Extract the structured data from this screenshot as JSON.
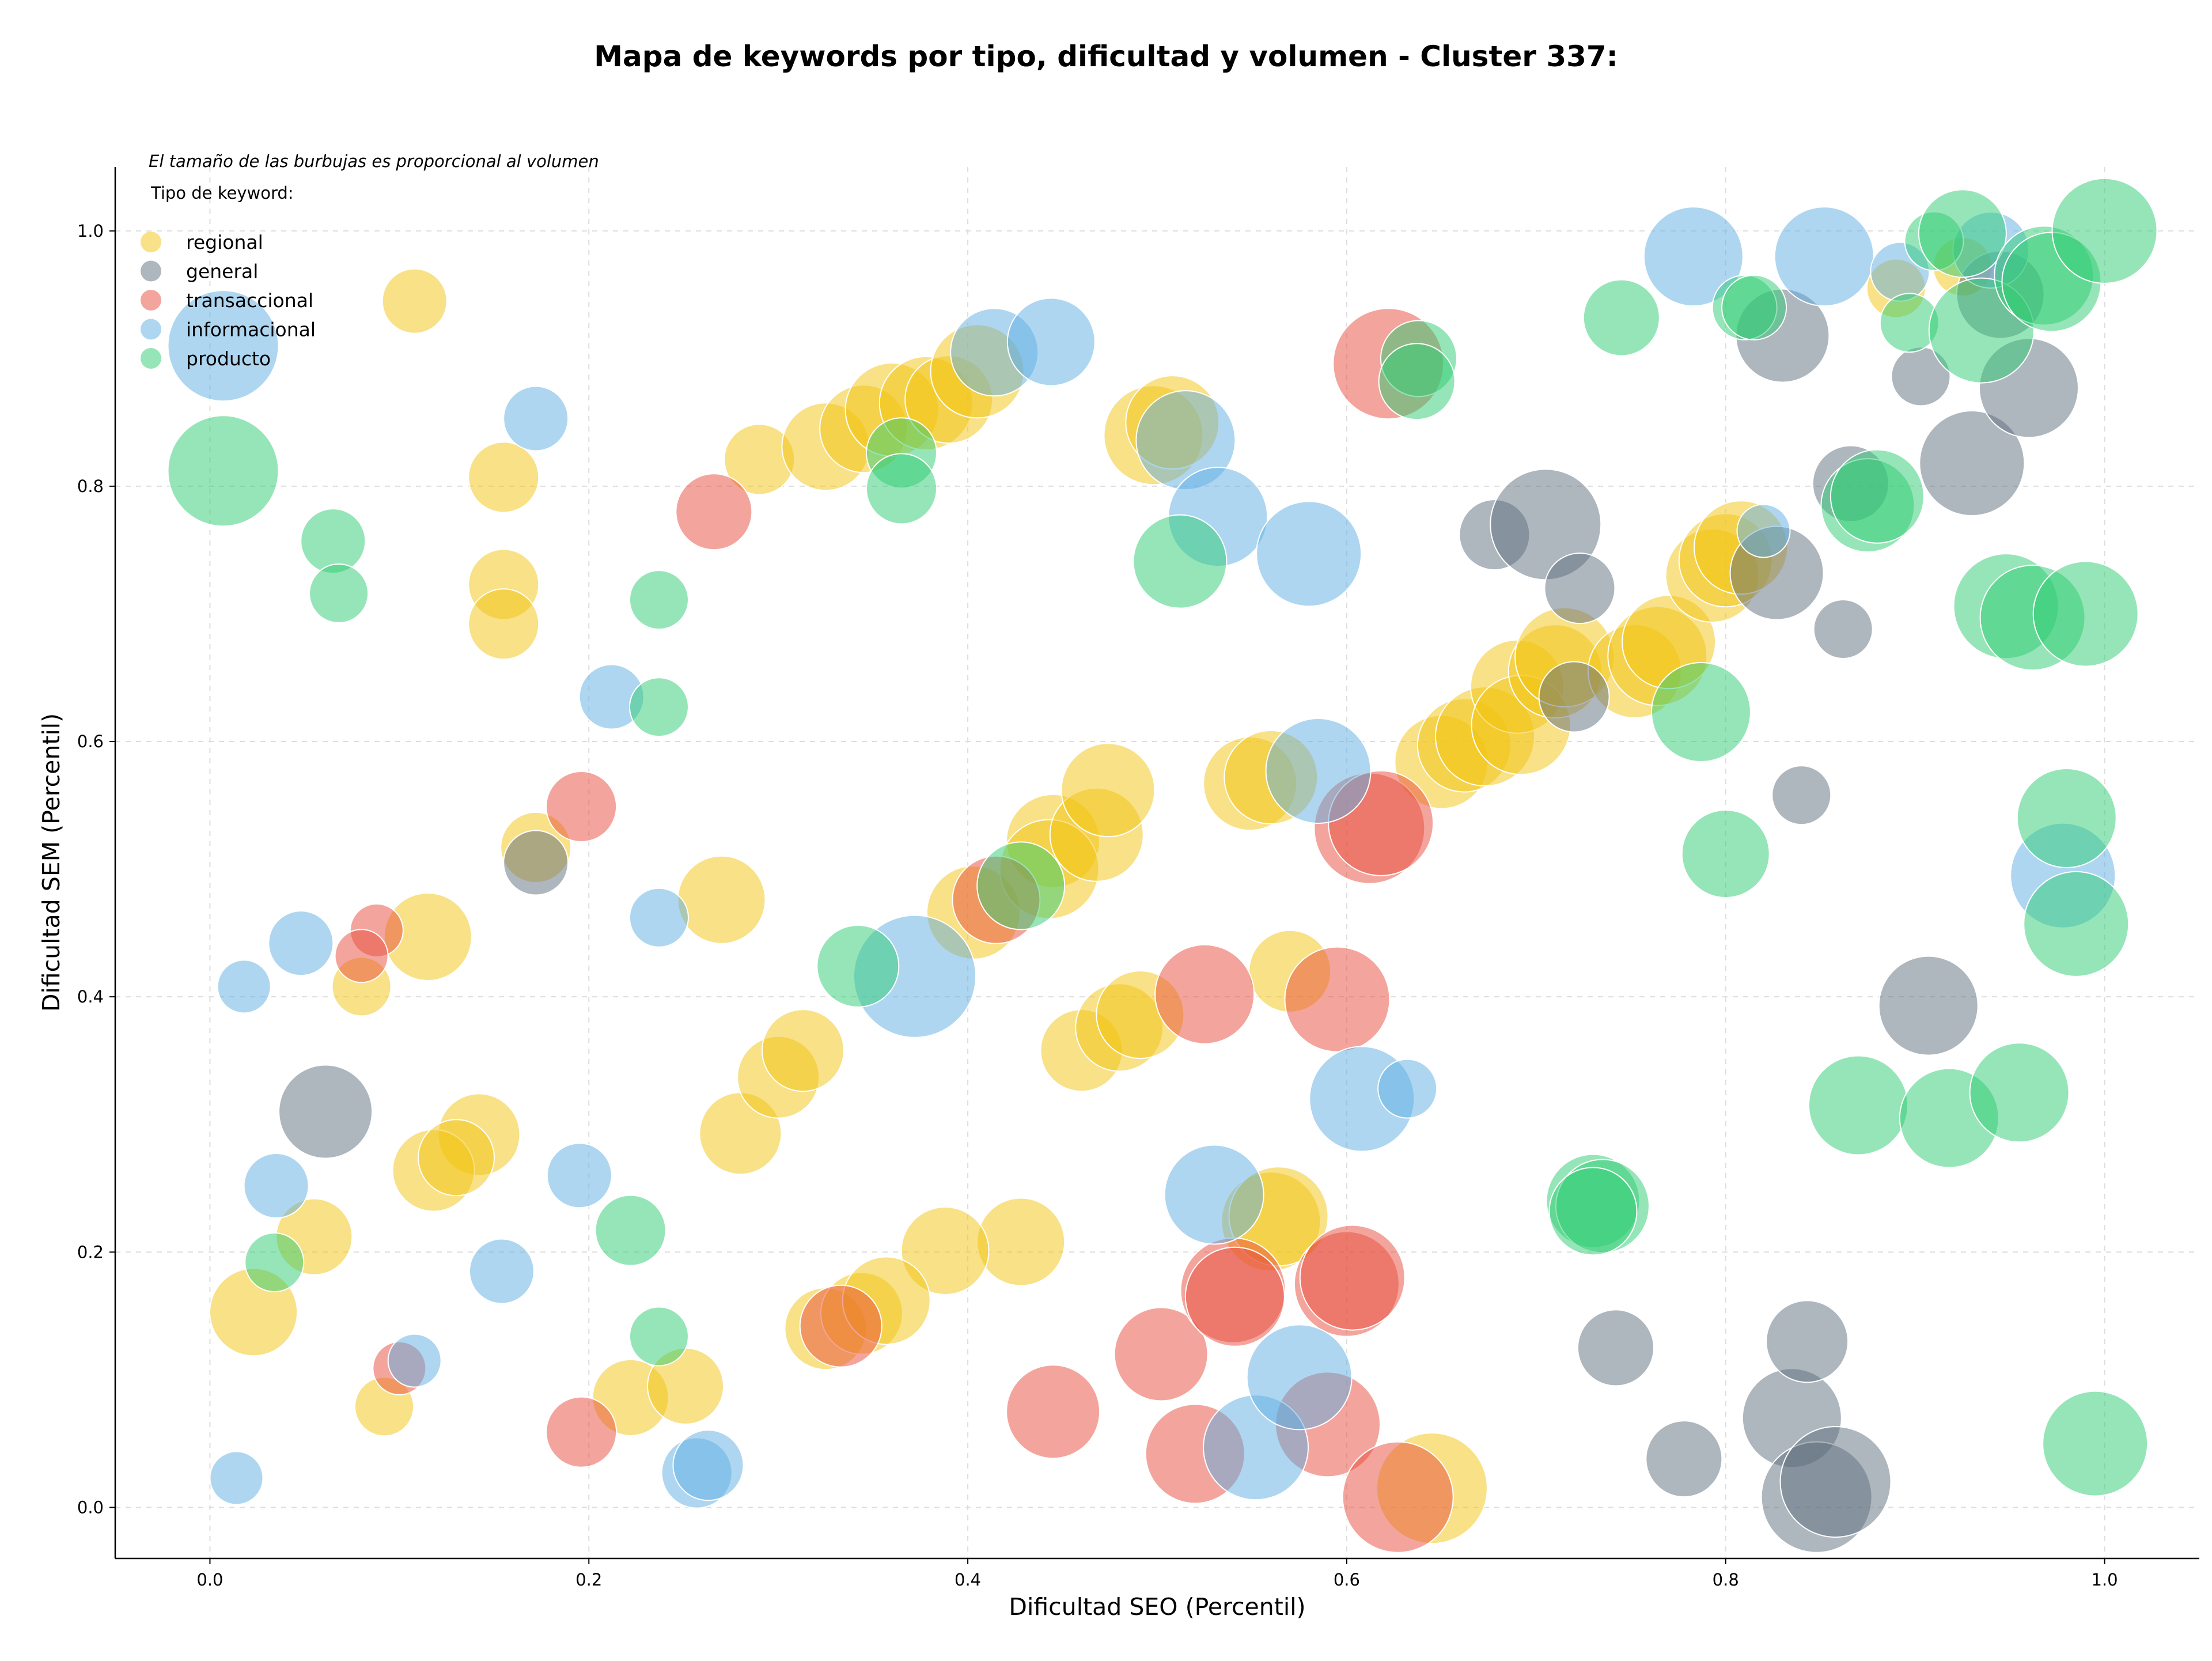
{
  "chart_data": {
    "type": "scatter",
    "title": "Mapa de keywords por tipo, dificultad y volumen - Cluster 337:",
    "xlabel": "Dificultad SEO (Percentil)",
    "ylabel": "Dificultad SEM (Percentil)",
    "xlim": [
      -0.05,
      1.05
    ],
    "ylim": [
      -0.04,
      1.05
    ],
    "x_ticks": [
      "0.0",
      "0.2",
      "0.4",
      "0.6",
      "0.8",
      "1.0"
    ],
    "y_ticks": [
      "0.0",
      "0.2",
      "0.4",
      "0.6",
      "0.8",
      "1.0"
    ],
    "grid": true,
    "legend_position": "top-left",
    "legend_title": "Tipo de keyword:",
    "note": "El tamaño de las burbujas es proporcional al volumen",
    "series": [
      {
        "name": "regional",
        "color": "#f1c40f",
        "points": [
          [
            0.108,
            0.945,
            0.3
          ],
          [
            0.155,
            0.807,
            0.35
          ],
          [
            0.155,
            0.723,
            0.35
          ],
          [
            0.155,
            0.692,
            0.35
          ],
          [
            0.172,
            0.517,
            0.35
          ],
          [
            0.115,
            0.447,
            0.5
          ],
          [
            0.08,
            0.408,
            0.25
          ],
          [
            0.142,
            0.292,
            0.45
          ],
          [
            0.118,
            0.264,
            0.45
          ],
          [
            0.13,
            0.274,
            0.4
          ],
          [
            0.055,
            0.212,
            0.4
          ],
          [
            0.023,
            0.153,
            0.5
          ],
          [
            0.092,
            0.079,
            0.25
          ],
          [
            0.222,
            0.086,
            0.4
          ],
          [
            0.251,
            0.095,
            0.4
          ],
          [
            0.27,
            0.476,
            0.5
          ],
          [
            0.29,
            0.821,
            0.35
          ],
          [
            0.325,
            0.831,
            0.5
          ],
          [
            0.345,
            0.845,
            0.5
          ],
          [
            0.36,
            0.86,
            0.55
          ],
          [
            0.378,
            0.865,
            0.55
          ],
          [
            0.39,
            0.868,
            0.5
          ],
          [
            0.405,
            0.89,
            0.55
          ],
          [
            0.28,
            0.293,
            0.45
          ],
          [
            0.3,
            0.337,
            0.45
          ],
          [
            0.313,
            0.358,
            0.45
          ],
          [
            0.403,
            0.466,
            0.55
          ],
          [
            0.445,
            0.522,
            0.55
          ],
          [
            0.443,
            0.5,
            0.6
          ],
          [
            0.468,
            0.527,
            0.55
          ],
          [
            0.474,
            0.562,
            0.55
          ],
          [
            0.46,
            0.358,
            0.45
          ],
          [
            0.48,
            0.376,
            0.5
          ],
          [
            0.491,
            0.386,
            0.5
          ],
          [
            0.549,
            0.567,
            0.55
          ],
          [
            0.56,
            0.572,
            0.55
          ],
          [
            0.57,
            0.42,
            0.45
          ],
          [
            0.498,
            0.84,
            0.6
          ],
          [
            0.508,
            0.85,
            0.55
          ],
          [
            0.56,
            0.224,
            0.6
          ],
          [
            0.564,
            0.228,
            0.6
          ],
          [
            0.428,
            0.208,
            0.5
          ],
          [
            0.388,
            0.201,
            0.5
          ],
          [
            0.325,
            0.14,
            0.45
          ],
          [
            0.344,
            0.152,
            0.45
          ],
          [
            0.357,
            0.162,
            0.5
          ],
          [
            0.645,
            0.015,
            0.7
          ],
          [
            0.65,
            0.584,
            0.55
          ],
          [
            0.662,
            0.597,
            0.55
          ],
          [
            0.673,
            0.604,
            0.6
          ],
          [
            0.69,
            0.643,
            0.55
          ],
          [
            0.692,
            0.613,
            0.6
          ],
          [
            0.71,
            0.655,
            0.55
          ],
          [
            0.715,
            0.666,
            0.6
          ],
          [
            0.752,
            0.655,
            0.55
          ],
          [
            0.764,
            0.667,
            0.6
          ],
          [
            0.77,
            0.678,
            0.55
          ],
          [
            0.793,
            0.73,
            0.55
          ],
          [
            0.8,
            0.742,
            0.55
          ],
          [
            0.808,
            0.752,
            0.55
          ],
          [
            0.89,
            0.955,
            0.25
          ],
          [
            0.925,
            0.972,
            0.25
          ]
        ]
      },
      {
        "name": "general",
        "color": "#5d6d7e",
        "points": [
          [
            0.061,
            0.31,
            0.55
          ],
          [
            0.172,
            0.505,
            0.3
          ],
          [
            0.678,
            0.762,
            0.35
          ],
          [
            0.705,
            0.77,
            0.7
          ],
          [
            0.72,
            0.635,
            0.35
          ],
          [
            0.723,
            0.72,
            0.35
          ],
          [
            0.742,
            0.125,
            0.4
          ],
          [
            0.778,
            0.038,
            0.4
          ],
          [
            0.827,
            0.732,
            0.55
          ],
          [
            0.83,
            0.918,
            0.55
          ],
          [
            0.835,
            0.07,
            0.6
          ],
          [
            0.84,
            0.558,
            0.25
          ],
          [
            0.843,
            0.13,
            0.45
          ],
          [
            0.848,
            0.008,
            0.7
          ],
          [
            0.858,
            0.02,
            0.7
          ],
          [
            0.862,
            0.688,
            0.25
          ],
          [
            0.866,
            0.802,
            0.4
          ],
          [
            0.903,
            0.886,
            0.25
          ],
          [
            0.907,
            0.393,
            0.6
          ],
          [
            0.93,
            0.818,
            0.65
          ],
          [
            0.945,
            0.95,
            0.5
          ],
          [
            0.96,
            0.877,
            0.6
          ]
        ]
      },
      {
        "name": "transaccional",
        "color": "#e74c3c",
        "points": [
          [
            0.088,
            0.452,
            0.2
          ],
          [
            0.08,
            0.432,
            0.2
          ],
          [
            0.196,
            0.549,
            0.35
          ],
          [
            0.196,
            0.059,
            0.35
          ],
          [
            0.1,
            0.109,
            0.2
          ],
          [
            0.266,
            0.78,
            0.4
          ],
          [
            0.333,
            0.142,
            0.45
          ],
          [
            0.415,
            0.476,
            0.5
          ],
          [
            0.445,
            0.075,
            0.55
          ],
          [
            0.502,
            0.12,
            0.55
          ],
          [
            0.52,
            0.042,
            0.6
          ],
          [
            0.525,
            0.402,
            0.6
          ],
          [
            0.54,
            0.17,
            0.65
          ],
          [
            0.541,
            0.165,
            0.6
          ],
          [
            0.59,
            0.065,
            0.65
          ],
          [
            0.595,
            0.398,
            0.65
          ],
          [
            0.6,
            0.175,
            0.65
          ],
          [
            0.603,
            0.18,
            0.65
          ],
          [
            0.612,
            0.532,
            0.7
          ],
          [
            0.618,
            0.536,
            0.65
          ],
          [
            0.622,
            0.896,
            0.7
          ],
          [
            0.627,
            0.008,
            0.7
          ]
        ]
      },
      {
        "name": "informacional",
        "color": "#5dade2",
        "points": [
          [
            0.007,
            0.91,
            0.7
          ],
          [
            0.018,
            0.408,
            0.2
          ],
          [
            0.014,
            0.023,
            0.2
          ],
          [
            0.035,
            0.252,
            0.3
          ],
          [
            0.048,
            0.442,
            0.3
          ],
          [
            0.108,
            0.115,
            0.2
          ],
          [
            0.154,
            0.185,
            0.3
          ],
          [
            0.172,
            0.853,
            0.3
          ],
          [
            0.195,
            0.26,
            0.3
          ],
          [
            0.212,
            0.635,
            0.3
          ],
          [
            0.237,
            0.462,
            0.25
          ],
          [
            0.257,
            0.027,
            0.35
          ],
          [
            0.263,
            0.033,
            0.35
          ],
          [
            0.372,
            0.416,
            0.8
          ],
          [
            0.414,
            0.905,
            0.5
          ],
          [
            0.444,
            0.913,
            0.5
          ],
          [
            0.515,
            0.836,
            0.6
          ],
          [
            0.532,
            0.776,
            0.6
          ],
          [
            0.53,
            0.245,
            0.6
          ],
          [
            0.552,
            0.047,
            0.65
          ],
          [
            0.575,
            0.102,
            0.65
          ],
          [
            0.58,
            0.747,
            0.65
          ],
          [
            0.585,
            0.577,
            0.65
          ],
          [
            0.608,
            0.32,
            0.65
          ],
          [
            0.632,
            0.328,
            0.25
          ],
          [
            0.783,
            0.98,
            0.6
          ],
          [
            0.82,
            0.765,
            0.2
          ],
          [
            0.852,
            0.98,
            0.6
          ],
          [
            0.892,
            0.968,
            0.25
          ],
          [
            0.94,
            0.985,
            0.4
          ],
          [
            0.978,
            0.495,
            0.65
          ]
        ]
      },
      {
        "name": "producto",
        "color": "#2ecc71",
        "points": [
          [
            0.007,
            0.812,
            0.7
          ],
          [
            0.034,
            0.192,
            0.25
          ],
          [
            0.065,
            0.757,
            0.3
          ],
          [
            0.068,
            0.716,
            0.25
          ],
          [
            0.222,
            0.217,
            0.35
          ],
          [
            0.237,
            0.711,
            0.25
          ],
          [
            0.237,
            0.627,
            0.25
          ],
          [
            0.237,
            0.134,
            0.25
          ],
          [
            0.342,
            0.424,
            0.45
          ],
          [
            0.365,
            0.826,
            0.35
          ],
          [
            0.365,
            0.798,
            0.35
          ],
          [
            0.428,
            0.487,
            0.5
          ],
          [
            0.512,
            0.741,
            0.55
          ],
          [
            0.638,
            0.9,
            0.4
          ],
          [
            0.637,
            0.882,
            0.4
          ],
          [
            0.745,
            0.932,
            0.4
          ],
          [
            0.73,
            0.24,
            0.55
          ],
          [
            0.735,
            0.236,
            0.55
          ],
          [
            0.73,
            0.232,
            0.5
          ],
          [
            0.787,
            0.623,
            0.6
          ],
          [
            0.8,
            0.512,
            0.5
          ],
          [
            0.81,
            0.94,
            0.3
          ],
          [
            0.815,
            0.94,
            0.3
          ],
          [
            0.87,
            0.315,
            0.6
          ],
          [
            0.875,
            0.785,
            0.55
          ],
          [
            0.88,
            0.792,
            0.55
          ],
          [
            0.897,
            0.928,
            0.25
          ],
          [
            0.91,
            0.992,
            0.25
          ],
          [
            0.918,
            0.305,
            0.6
          ],
          [
            0.925,
            0.998,
            0.5
          ],
          [
            0.935,
            0.922,
            0.65
          ],
          [
            0.948,
            0.706,
            0.65
          ],
          [
            0.955,
            0.325,
            0.6
          ],
          [
            0.962,
            0.697,
            0.65
          ],
          [
            0.968,
            0.965,
            0.6
          ],
          [
            0.972,
            0.96,
            0.6
          ],
          [
            0.98,
            0.54,
            0.6
          ],
          [
            0.985,
            0.457,
            0.65
          ],
          [
            0.99,
            0.7,
            0.65
          ],
          [
            0.995,
            0.05,
            0.65
          ],
          [
            1.0,
            1.0,
            0.65
          ]
        ]
      }
    ]
  }
}
